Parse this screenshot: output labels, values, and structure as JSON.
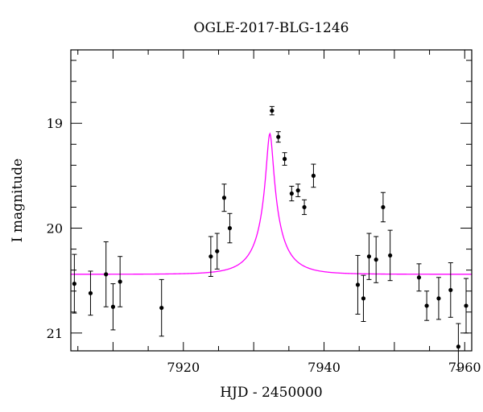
{
  "chart_data": {
    "type": "scatter",
    "title": "OGLE-2017-BLG-1246",
    "xlabel": "HJD - 2450000",
    "ylabel": "I magnitude",
    "xlim": [
      7904,
      7961
    ],
    "ylim": [
      21.17,
      18.3
    ],
    "y_inverted": true,
    "grid": false,
    "x_ticks": [
      7920,
      7940,
      7960
    ],
    "x_tick_labels": [
      "7920",
      "7940",
      "7960"
    ],
    "y_ticks": [
      19,
      20,
      21
    ],
    "y_tick_labels": [
      "19",
      "20",
      "21"
    ],
    "colors": {
      "model": "#ff00ff",
      "points": "#000000"
    },
    "model": {
      "type": "point-lens",
      "t0": 7932.3,
      "tE": 4.2,
      "u0": 0.11,
      "baseline": 20.44,
      "fs": 0.3
    },
    "series": [
      {
        "x": [
          7904.5,
          7906.8,
          7909.0,
          7910.0,
          7911.0,
          7916.9,
          7923.9,
          7924.8,
          7925.8,
          7926.6,
          7932.6,
          7933.5,
          7934.4,
          7935.4,
          7936.3,
          7937.2,
          7938.5,
          7944.8,
          7945.6,
          7946.4,
          7947.4,
          7948.4,
          7949.4,
          7953.5,
          7954.6,
          7956.3,
          7958.0,
          7959.1,
          7960.2
        ],
        "y": [
          20.53,
          20.62,
          20.44,
          20.75,
          20.51,
          20.76,
          20.27,
          20.22,
          19.71,
          20.0,
          18.88,
          19.13,
          19.34,
          19.67,
          19.64,
          19.8,
          19.5,
          20.54,
          20.67,
          20.27,
          20.3,
          19.8,
          20.26,
          20.47,
          20.74,
          20.67,
          20.59,
          21.13,
          20.74
        ],
        "err": [
          0.28,
          0.21,
          0.31,
          0.22,
          0.24,
          0.27,
          0.19,
          0.17,
          0.13,
          0.14,
          0.04,
          0.05,
          0.06,
          0.07,
          0.06,
          0.07,
          0.11,
          0.28,
          0.22,
          0.22,
          0.22,
          0.14,
          0.24,
          0.13,
          0.14,
          0.2,
          0.26,
          0.22,
          0.26
        ]
      }
    ]
  }
}
